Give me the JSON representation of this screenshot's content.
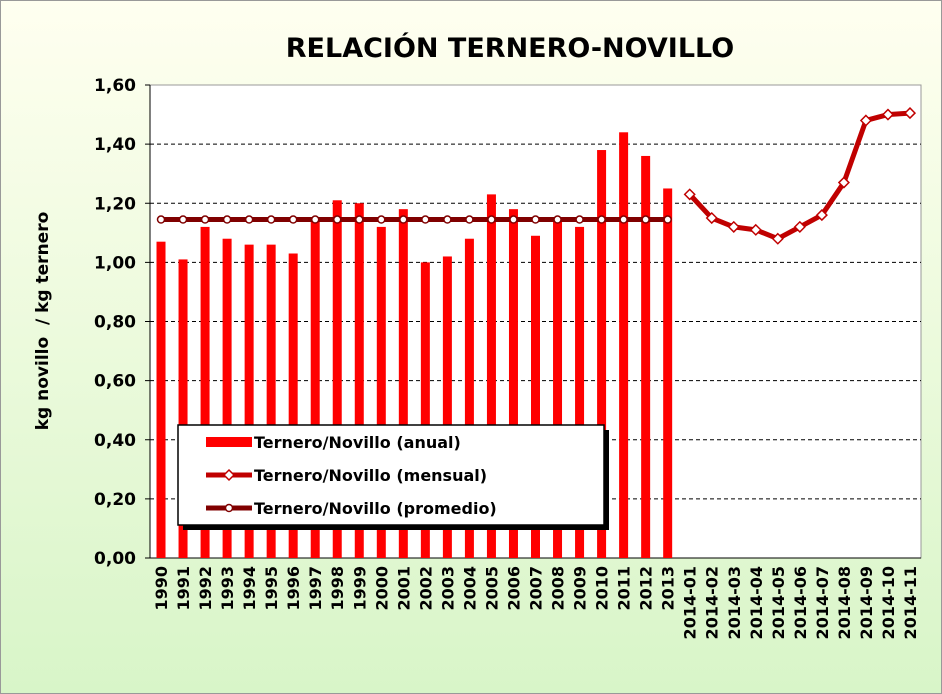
{
  "chart_data": {
    "type": "bar",
    "title": "RELACIÓN TERNERO-NOVILLO",
    "y_label": "kg novillo  / kg ternero",
    "categories": [
      "1990",
      "1991",
      "1992",
      "1993",
      "1994",
      "1995",
      "1996",
      "1997",
      "1998",
      "1999",
      "2000",
      "2001",
      "2002",
      "2003",
      "2004",
      "2005",
      "2006",
      "2007",
      "2008",
      "2009",
      "2010",
      "2011",
      "2012",
      "2013",
      "2014-01",
      "2014-02",
      "2014-03",
      "2014-04",
      "2014-05",
      "2014-06",
      "2014-07",
      "2014-08",
      "2014-09",
      "2014-10",
      "2014-11"
    ],
    "series": [
      {
        "name": "Ternero/Novillo (anual)",
        "type": "bar",
        "color": "#ff0000",
        "values": [
          1.07,
          1.01,
          1.12,
          1.08,
          1.06,
          1.06,
          1.03,
          1.14,
          1.21,
          1.2,
          1.12,
          1.18,
          1.0,
          1.02,
          1.08,
          1.23,
          1.18,
          1.09,
          1.14,
          1.12,
          1.38,
          1.44,
          1.36,
          1.25,
          null,
          null,
          null,
          null,
          null,
          null,
          null,
          null,
          null,
          null,
          null
        ]
      },
      {
        "name": "Ternero/Novillo (mensual)",
        "type": "line",
        "marker": "diamond",
        "color": "#c00000",
        "values": [
          null,
          null,
          null,
          null,
          null,
          null,
          null,
          null,
          null,
          null,
          null,
          null,
          null,
          null,
          null,
          null,
          null,
          null,
          null,
          null,
          null,
          null,
          null,
          null,
          1.23,
          1.15,
          1.12,
          1.11,
          1.08,
          1.12,
          1.16,
          1.27,
          1.48,
          1.5,
          1.505
        ]
      },
      {
        "name": "Ternero/Novillo (promedio)",
        "type": "line",
        "marker": "circle",
        "color": "#800000",
        "values": [
          1.145,
          1.145,
          1.145,
          1.145,
          1.145,
          1.145,
          1.145,
          1.145,
          1.145,
          1.145,
          1.145,
          1.145,
          1.145,
          1.145,
          1.145,
          1.145,
          1.145,
          1.145,
          1.145,
          1.145,
          1.145,
          1.145,
          1.145,
          1.145,
          null,
          null,
          null,
          null,
          null,
          null,
          null,
          null,
          null,
          null,
          null
        ]
      }
    ],
    "ylim": [
      0,
      1.6
    ],
    "yticks": [
      {
        "value": 0,
        "label": "0,00"
      },
      {
        "value": 0.2,
        "label": "0,20"
      },
      {
        "value": 0.4,
        "label": "0,40"
      },
      {
        "value": 0.6,
        "label": "0,60"
      },
      {
        "value": 0.8,
        "label": "0,80"
      },
      {
        "value": 1.0,
        "label": "1,00"
      },
      {
        "value": 1.2,
        "label": "1,20"
      },
      {
        "value": 1.4,
        "label": "1,40"
      },
      {
        "value": 1.6,
        "label": "1,60"
      }
    ],
    "grid": true,
    "legend": "lower left"
  }
}
